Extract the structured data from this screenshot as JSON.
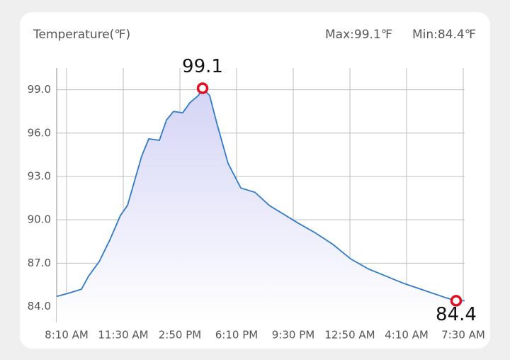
{
  "header": {
    "title": "Temperature(℉)",
    "max": "Max:99.1℉",
    "min": "Min:84.4℉"
  },
  "chart_data": {
    "type": "line",
    "x": [
      455,
      492.5,
      542.5,
      567.5,
      605,
      642.5,
      680,
      705,
      730,
      755,
      780,
      817.5,
      842.5,
      867.5,
      900,
      925,
      955,
      970,
      995,
      1020,
      1060,
      1105,
      1155,
      1205,
      1255,
      1305,
      1367.5,
      1430,
      1492.5,
      1555,
      1617.5,
      1680,
      1755,
      1830,
      1865,
      1895
    ],
    "values": [
      84.7,
      84.9,
      85.2,
      86.1,
      87.1,
      88.6,
      90.3,
      91.0,
      92.7,
      94.4,
      95.6,
      95.5,
      96.9,
      97.5,
      97.4,
      98.1,
      98.6,
      99.1,
      98.6,
      96.7,
      93.9,
      92.2,
      91.9,
      91.0,
      90.4,
      89.8,
      89.1,
      88.3,
      87.3,
      86.6,
      86.1,
      85.6,
      85.1,
      84.6,
      84.4,
      84.4
    ],
    "color": "#2f7bc8",
    "xlim": [
      455,
      1895
    ],
    "xticks": [
      {
        "value": 490,
        "label": "8:10 AM"
      },
      {
        "value": 690,
        "label": "11:30 AM"
      },
      {
        "value": 890,
        "label": "2:50 PM"
      },
      {
        "value": 1090,
        "label": "6:10 PM"
      },
      {
        "value": 1290,
        "label": "9:30 PM"
      },
      {
        "value": 1490,
        "label": "12:50 AM"
      },
      {
        "value": 1690,
        "label": "4:10 AM"
      },
      {
        "value": 1890,
        "label": "7:30 AM"
      }
    ],
    "ylim": [
      82.9,
      100.5
    ],
    "yticks": [
      {
        "value": 84,
        "label": "84.0"
      },
      {
        "value": 87,
        "label": "87.0"
      },
      {
        "value": 90,
        "label": "90.0"
      },
      {
        "value": 93,
        "label": "93.0"
      },
      {
        "value": 96,
        "label": "96.0"
      },
      {
        "value": 99,
        "label": "99.0"
      }
    ],
    "grid": true,
    "max_point": {
      "x": 970,
      "value": 99.1
    },
    "min_point": {
      "x": 1865,
      "value": 84.4
    }
  }
}
